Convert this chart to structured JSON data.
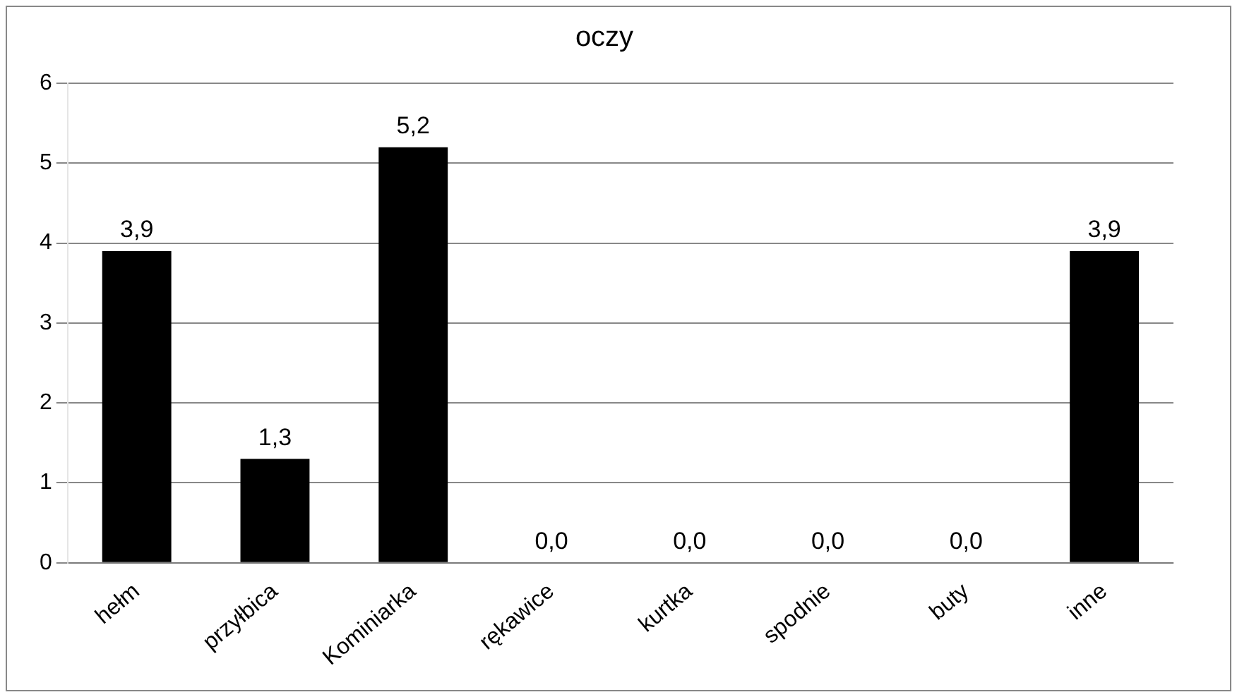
{
  "chart_data": {
    "type": "bar",
    "title": "oczy",
    "categories": [
      "hełm",
      "przyłbica",
      "Kominiarka",
      "rękawice",
      "kurtka",
      "spodnie",
      "buty",
      "inne"
    ],
    "values": [
      3.9,
      1.3,
      5.2,
      0,
      0,
      0,
      0,
      3.9
    ],
    "value_labels": [
      "3,9",
      "1,3",
      "5,2",
      "0,0",
      "0,0",
      "0,0",
      "0,0",
      "3,9"
    ],
    "color": "#000000",
    "ylim": [
      0,
      6
    ],
    "yticks": [
      0,
      1,
      2,
      3,
      4,
      5,
      6
    ],
    "grid": "y",
    "legend": false
  }
}
